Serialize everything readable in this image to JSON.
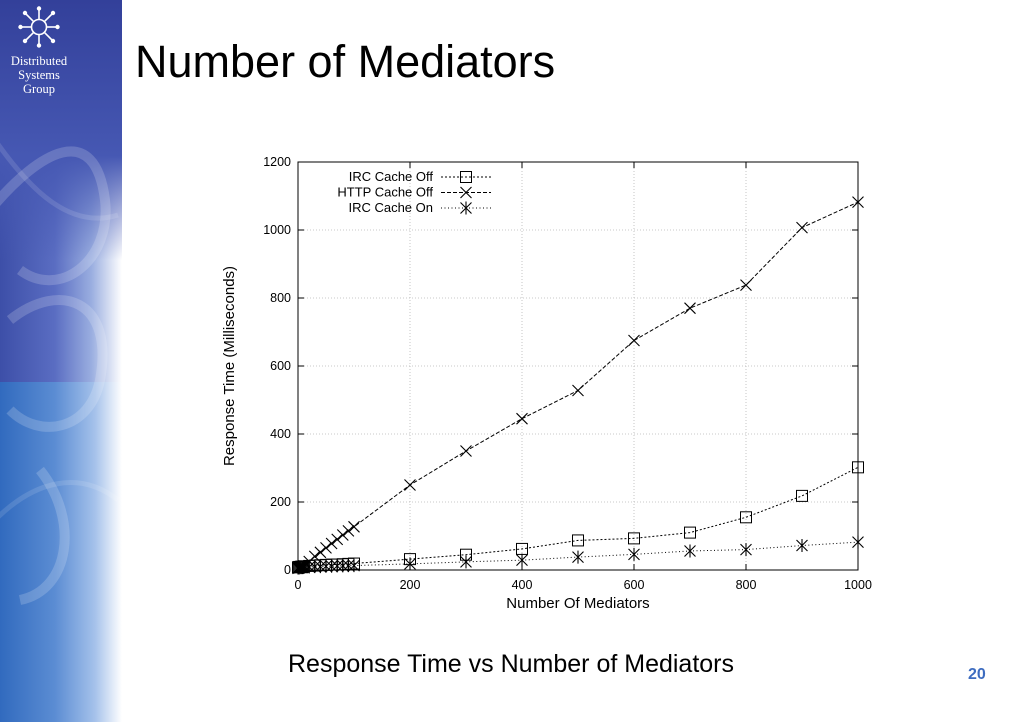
{
  "slide": {
    "title": "Number of Mediators",
    "caption": "Response Time vs Number of Mediators",
    "page_number": "20"
  },
  "sidebar": {
    "logo_icon": "network-star-icon",
    "org_lines": [
      "Distributed",
      "Systems",
      "Group"
    ],
    "colors": {
      "dark": "#33409a",
      "mid": "#5a6dc2",
      "light": "#9aaee0"
    }
  },
  "chart_data": {
    "type": "line",
    "title": "",
    "xlabel": "Number Of Mediators",
    "ylabel": "Response Time (Milliseconds)",
    "xlim": [
      0,
      1000
    ],
    "ylim": [
      0,
      1200
    ],
    "xticks": [
      0,
      200,
      400,
      600,
      800,
      1000
    ],
    "yticks": [
      0,
      200,
      400,
      600,
      800,
      1000,
      1200
    ],
    "grid": true,
    "legend_position": "top-left",
    "series": [
      {
        "name": "IRC Cache Off",
        "marker": "square",
        "dash": "dotted",
        "x": [
          0,
          2,
          4,
          6,
          8,
          10,
          20,
          30,
          40,
          50,
          60,
          70,
          80,
          90,
          100,
          200,
          300,
          400,
          500,
          600,
          700,
          800,
          900,
          1000
        ],
        "y": [
          8,
          9,
          9,
          10,
          10,
          11,
          12,
          13,
          14,
          15,
          16,
          16,
          17,
          18,
          19,
          32,
          45,
          62,
          87,
          93,
          110,
          155,
          218,
          302
        ]
      },
      {
        "name": "HTTP Cache Off",
        "marker": "x",
        "dash": "dashed",
        "x": [
          0,
          2,
          4,
          6,
          8,
          10,
          20,
          30,
          40,
          50,
          60,
          70,
          80,
          90,
          100,
          200,
          300,
          400,
          500,
          600,
          700,
          800,
          900,
          1000
        ],
        "y": [
          5,
          7,
          8,
          9,
          10,
          12,
          25,
          40,
          52,
          65,
          78,
          90,
          103,
          115,
          127,
          250,
          350,
          445,
          528,
          675,
          770,
          838,
          1007,
          1082
        ]
      },
      {
        "name": "IRC Cache On",
        "marker": "star",
        "dash": "dotted-sparse",
        "x": [
          0,
          2,
          4,
          6,
          8,
          10,
          20,
          30,
          40,
          50,
          60,
          70,
          80,
          90,
          100,
          200,
          300,
          400,
          500,
          600,
          700,
          800,
          900,
          1000
        ],
        "y": [
          6,
          6,
          7,
          7,
          7,
          8,
          9,
          10,
          10,
          11,
          11,
          12,
          12,
          13,
          13,
          18,
          24,
          29,
          38,
          46,
          56,
          60,
          72,
          82
        ]
      }
    ]
  }
}
